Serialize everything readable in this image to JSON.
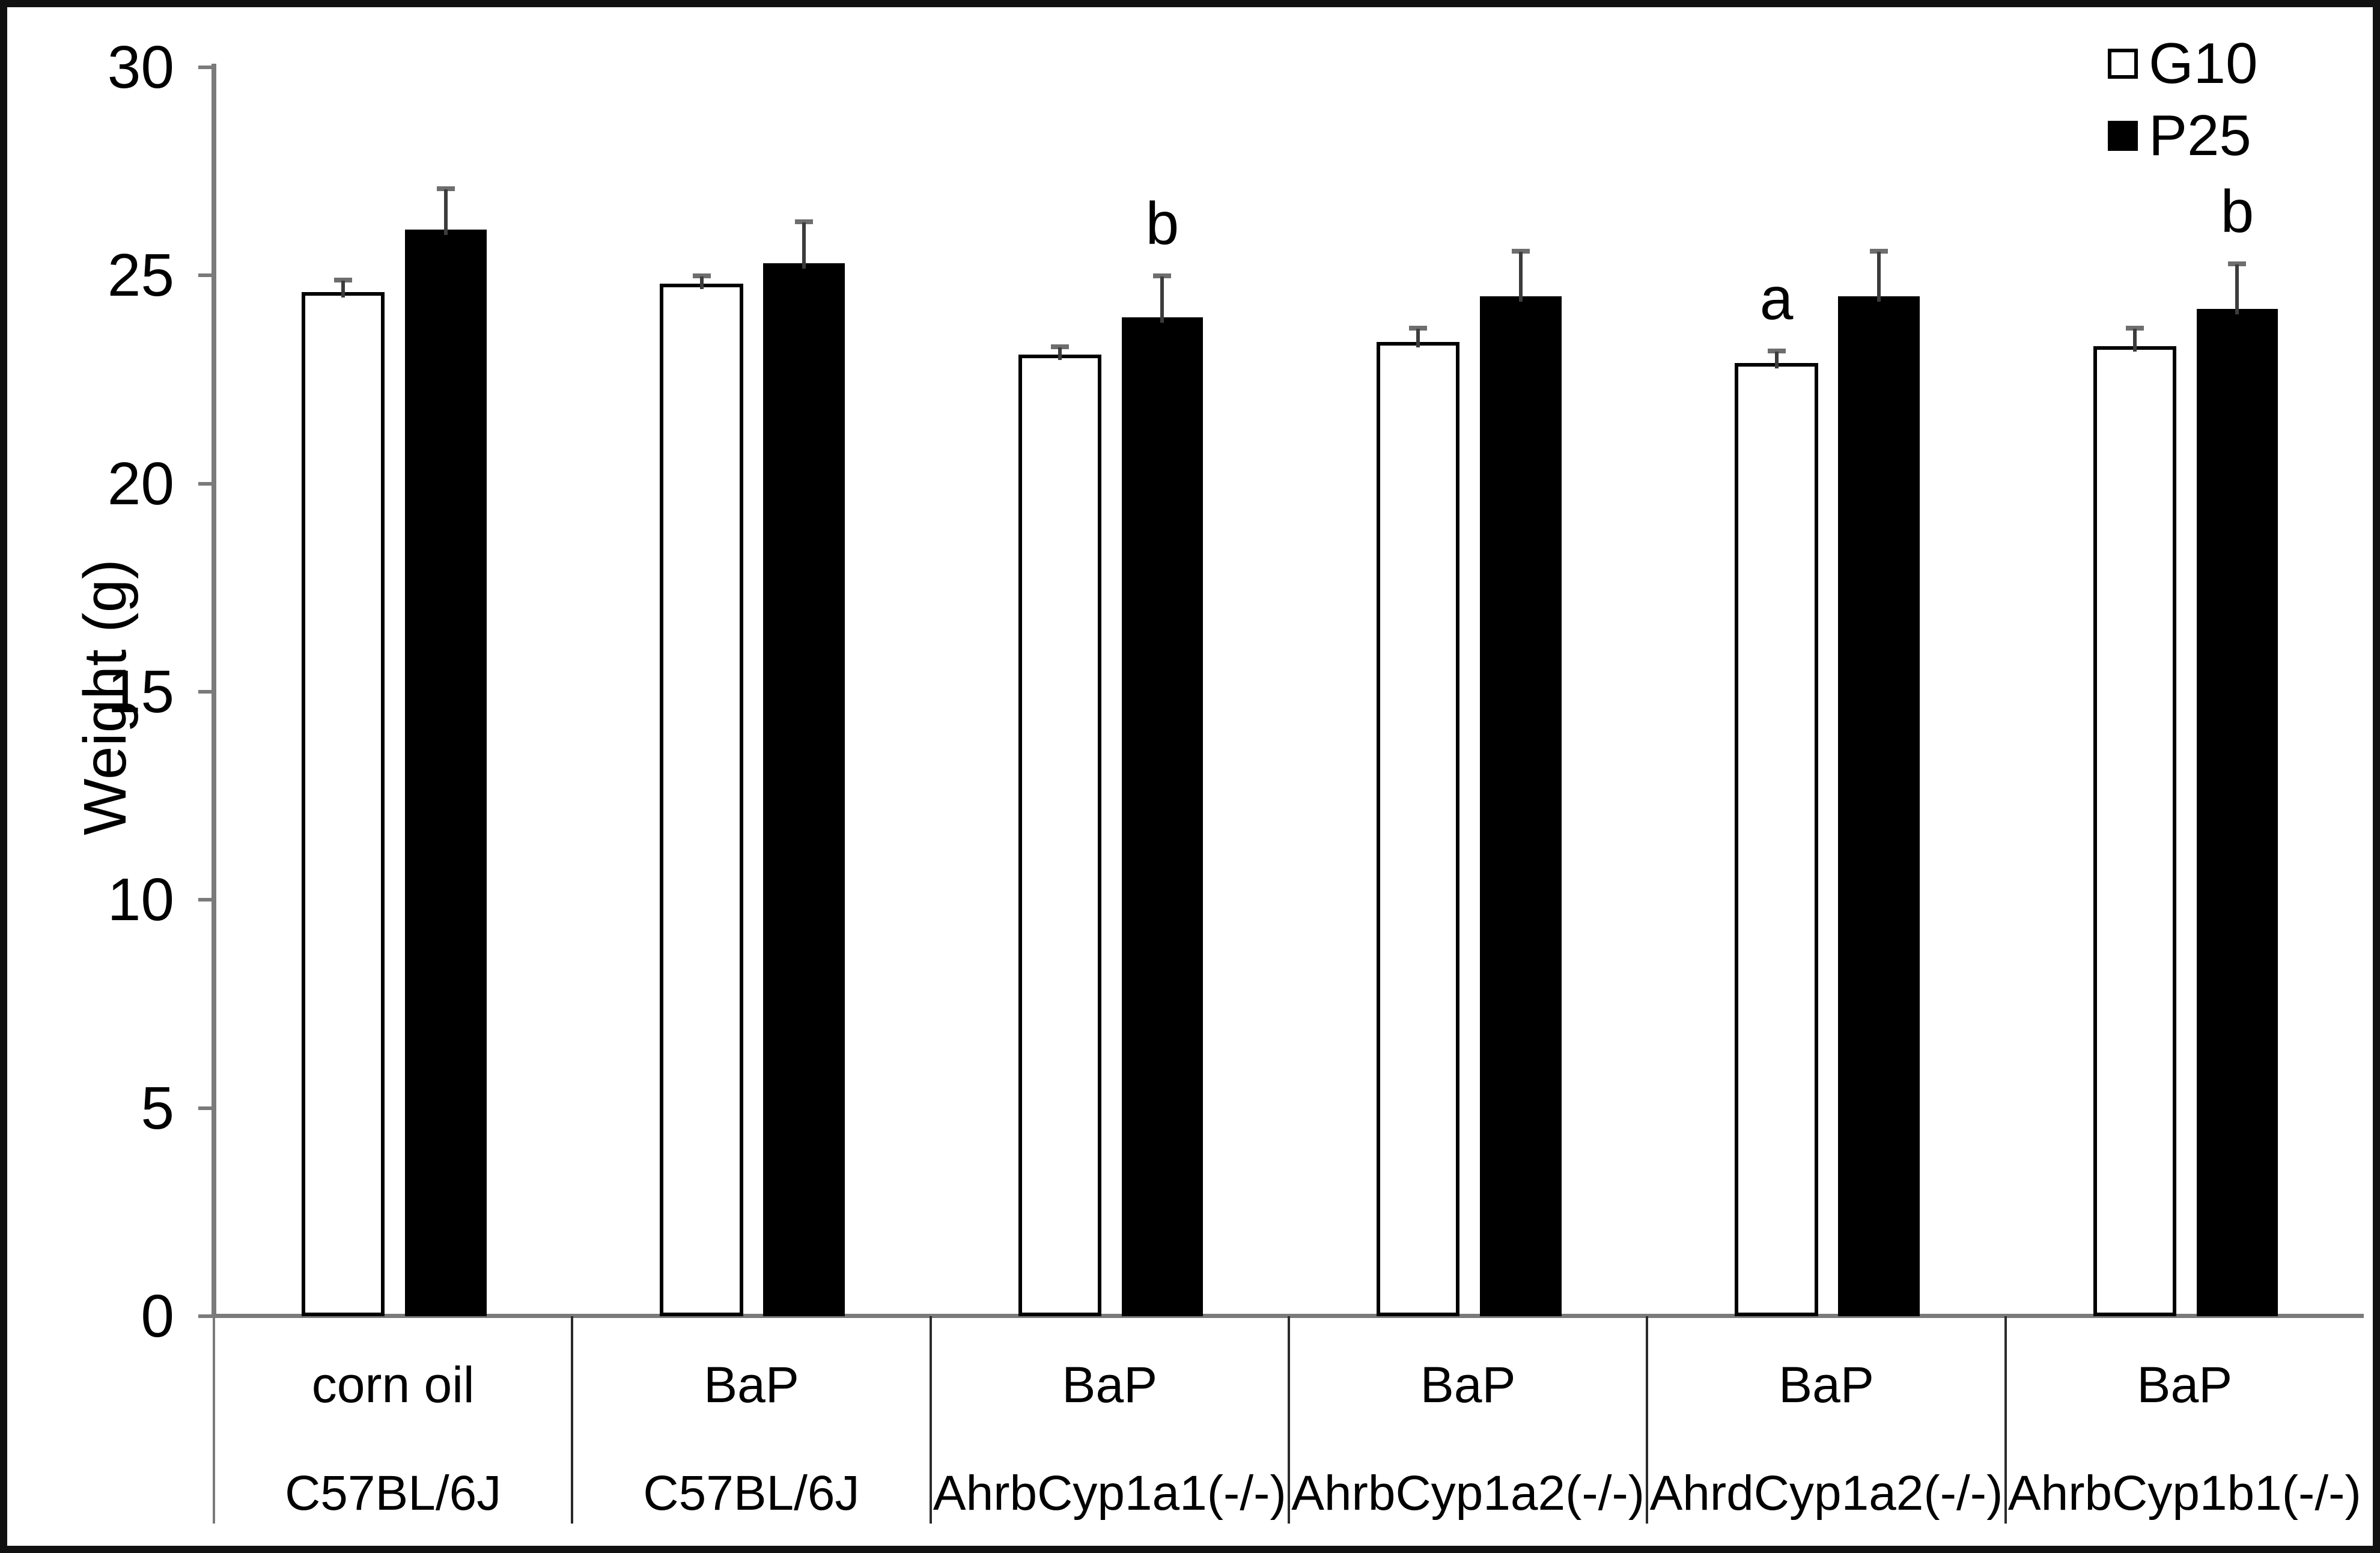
{
  "chart_data": {
    "type": "bar",
    "title": "",
    "xlabel": "",
    "ylabel": "Weight (g)",
    "ylim": [
      0,
      30
    ],
    "yticks": [
      0,
      5,
      10,
      15,
      20,
      25,
      30
    ],
    "grid": false,
    "legend_position": "top-right",
    "error_bars": "upper, SD/SE caps",
    "categories": [
      {
        "treatment": "corn oil",
        "genotype": "C57BL/6J"
      },
      {
        "treatment": "BaP",
        "genotype": "C57BL/6J"
      },
      {
        "treatment": "BaP",
        "genotype": "AhrbCyp1a1(-/-)"
      },
      {
        "treatment": "BaP",
        "genotype": "AhrbCyp1a2(-/-)"
      },
      {
        "treatment": "BaP",
        "genotype": "AhrdCyp1a2(-/-)"
      },
      {
        "treatment": "BaP",
        "genotype": "AhrbCyp1b1(-/-)"
      }
    ],
    "series": [
      {
        "name": "G10",
        "fill": "open",
        "values": [
          24.6,
          24.8,
          23.1,
          23.4,
          22.9,
          23.3
        ],
        "errors": [
          0.3,
          0.2,
          0.2,
          0.35,
          0.3,
          0.45
        ],
        "annotations": [
          "",
          "",
          "",
          "",
          "a",
          ""
        ]
      },
      {
        "name": "P25",
        "fill": "solid",
        "values": [
          26.1,
          25.3,
          24.0,
          24.5,
          24.5,
          24.2
        ],
        "errors": [
          1.0,
          1.0,
          1.0,
          1.1,
          1.1,
          1.1
        ],
        "annotations": [
          "",
          "",
          "b",
          "",
          "",
          "b"
        ]
      }
    ],
    "colors": {
      "bar_open": "#ffffff",
      "bar_solid": "#000000",
      "axis": "#7a7a7a",
      "error_stem": "#3c3c3c",
      "error_cap": "#6e6e6e",
      "text": "#000000"
    }
  }
}
